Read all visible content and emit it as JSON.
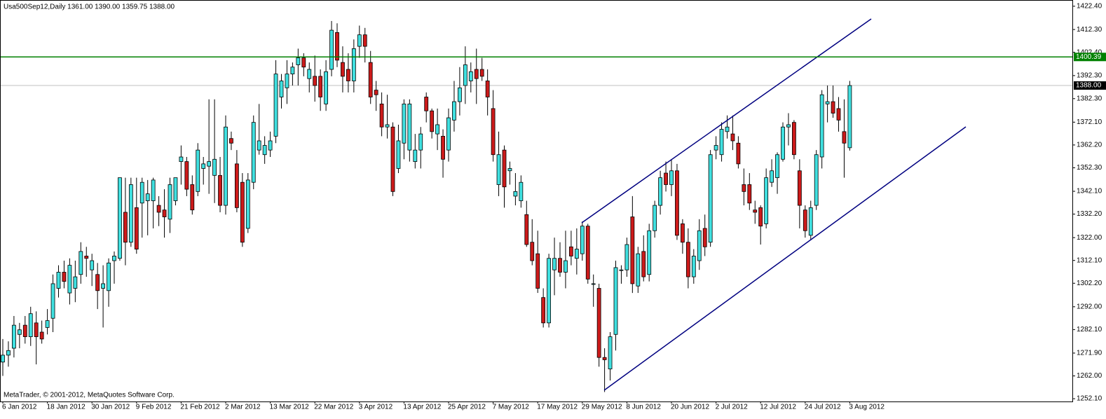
{
  "chart_data": {
    "type": "candlestick",
    "title": "Usa500Sep12,Daily  1361.00 1390.00 1359.75 1388.00",
    "copyright": "MetaTrader, © 2001-2012, MetaQuotes Software Corp.",
    "up_color": "#40e0e0",
    "down_color": "#cc1a1a",
    "categories": [
      "6 Jan 2012",
      null,
      null,
      null,
      null,
      null,
      null,
      null,
      "18 Jan 2012",
      null,
      null,
      null,
      null,
      null,
      null,
      null,
      "30 Jan 2012",
      null,
      null,
      null,
      null,
      null,
      null,
      null,
      "9 Feb 2012",
      null,
      null,
      null,
      null,
      null,
      null,
      null,
      "21 Feb 2012",
      null,
      null,
      null,
      null,
      null,
      null,
      null,
      "2 Mar 2012",
      null,
      null,
      null,
      null,
      null,
      null,
      null,
      "13 Mar 2012",
      null,
      null,
      null,
      null,
      null,
      null,
      null,
      "22 Mar 2012",
      null,
      null,
      null,
      null,
      null,
      null,
      null,
      "3 Apr 2012",
      null,
      null,
      null,
      null,
      null,
      null,
      null,
      "13 Apr 2012",
      null,
      null,
      null,
      null,
      null,
      null,
      null,
      "25 Apr 2012",
      null,
      null,
      null,
      null,
      null,
      null,
      null,
      "7 May 2012",
      null,
      null,
      null,
      null,
      null,
      null,
      null,
      "17 May 2012",
      null,
      null,
      null,
      null,
      null,
      null,
      null,
      "29 May 2012",
      null,
      null,
      null,
      null,
      null,
      null,
      null,
      "8 Jun 2012",
      null,
      null,
      null,
      null,
      null,
      null,
      null,
      "20 Jun 2012",
      null,
      null,
      null,
      null,
      null,
      null,
      null,
      "2 Jul 2012",
      null,
      null,
      null,
      null,
      null,
      null,
      null,
      "12 Jul 2012",
      null,
      null,
      null,
      null,
      null,
      null,
      null,
      "24 Jul 2012",
      null,
      null,
      null,
      null,
      null,
      null,
      null,
      "3 Aug 2012"
    ],
    "open": [
      1268,
      1271,
      1274,
      1280,
      1284,
      1279,
      1285,
      1281,
      1283,
      1287,
      1300,
      1307,
      1298,
      1300,
      1306,
      1314,
      1308,
      1306,
      1300,
      1299,
      1312,
      1313,
      1333,
      1320,
      1335,
      1337,
      1338,
      1338,
      1336,
      1334,
      1330,
      1338,
      1355,
      1355,
      1345,
      1342,
      1352,
      1353,
      1349,
      1349,
      1336,
      1365,
      1354,
      1346,
      1326,
      1346,
      1360,
      1358,
      1360,
      1366,
      1383,
      1387,
      1393,
      1397,
      1400,
      1391,
      1392,
      1392,
      1380,
      1395,
      1411,
      1398,
      1395,
      1390,
      1405,
      1410,
      1398,
      1386,
      1380,
      1370,
      1370,
      1352,
      1363,
      1360,
      1355,
      1360,
      1383,
      1377,
      1367,
      1366,
      1360,
      1373,
      1381,
      1388,
      1390,
      1395,
      1395,
      1390,
      1378,
      1345,
      1360,
      1351,
      1340,
      1338,
      1332,
      1320,
      1315,
      1296,
      1285,
      1308,
      1313,
      1307,
      1318,
      1313,
      1315,
      1327,
      1302,
      1300,
      1270,
      1265,
      1280,
      1308,
      1308,
      1331,
      1301,
      1316,
      1306,
      1325,
      1336,
      1350,
      1345,
      1351,
      1328,
      1320,
      1305,
      1312,
      1326,
      1320,
      1360,
      1358,
      1368,
      1367,
      1363,
      1345,
      1345,
      1334,
      1335,
      1328,
      1346,
      1348,
      1356,
      1370,
      1372,
      1351,
      1334,
      1323,
      1336,
      1357,
      1380,
      1381,
      1378,
      1368,
      1361
    ],
    "high": [
      1278,
      1277,
      1288,
      1285,
      1288,
      1292,
      1290,
      1286,
      1291,
      1306,
      1310,
      1312,
      1313,
      1312,
      1320,
      1318,
      1315,
      1311,
      1310,
      1313,
      1316,
      1348,
      1348,
      1348,
      1348,
      1348,
      1347,
      1348,
      1340,
      1343,
      1348,
      1348,
      1362,
      1357,
      1349,
      1363,
      1357,
      1382,
      1382,
      1357,
      1375,
      1368,
      1360,
      1350,
      1350,
      1375,
      1380,
      1366,
      1368,
      1399,
      1393,
      1399,
      1398,
      1404,
      1402,
      1398,
      1401,
      1395,
      1399,
      1416,
      1415,
      1405,
      1402,
      1408,
      1414,
      1413,
      1403,
      1390,
      1385,
      1384,
      1372,
      1371,
      1382,
      1382,
      1367,
      1370,
      1385,
      1378,
      1378,
      1369,
      1378,
      1390,
      1396,
      1405,
      1398,
      1404,
      1400,
      1395,
      1386,
      1368,
      1362,
      1355,
      1350,
      1349,
      1338,
      1330,
      1325,
      1300,
      1315,
      1322,
      1320,
      1325,
      1325,
      1326,
      1329,
      1328,
      1306,
      1302,
      1274,
      1281,
      1312,
      1310,
      1322,
      1340,
      1318,
      1323,
      1328,
      1338,
      1351,
      1355,
      1356,
      1354,
      1330,
      1326,
      1317,
      1330,
      1332,
      1360,
      1366,
      1372,
      1375,
      1375,
      1366,
      1352,
      1350,
      1338,
      1336,
      1352,
      1356,
      1359,
      1372,
      1376,
      1373,
      1356,
      1336,
      1338,
      1360,
      1386,
      1388,
      1388,
      1383,
      1382,
      1390
    ],
    "low": [
      1262,
      1266,
      1270,
      1274,
      1276,
      1275,
      1267,
      1276,
      1280,
      1281,
      1296,
      1300,
      1293,
      1294,
      1302,
      1305,
      1301,
      1291,
      1283,
      1292,
      1302,
      1312,
      1310,
      1318,
      1315,
      1322,
      1323,
      1326,
      1327,
      1322,
      1324,
      1336,
      1345,
      1340,
      1332,
      1340,
      1345,
      1341,
      1337,
      1333,
      1332,
      1360,
      1333,
      1318,
      1324,
      1343,
      1358,
      1354,
      1357,
      1363,
      1378,
      1380,
      1388,
      1388,
      1392,
      1385,
      1381,
      1377,
      1377,
      1392,
      1396,
      1385,
      1385,
      1385,
      1400,
      1398,
      1380,
      1377,
      1366,
      1365,
      1340,
      1350,
      1356,
      1355,
      1352,
      1352,
      1372,
      1365,
      1360,
      1348,
      1355,
      1368,
      1375,
      1380,
      1385,
      1380,
      1390,
      1375,
      1355,
      1340,
      1335,
      1345,
      1336,
      1335,
      1318,
      1310,
      1298,
      1283,
      1283,
      1297,
      1305,
      1300,
      1310,
      1306,
      1312,
      1302,
      1292,
      1266,
      1255,
      1260,
      1273,
      1302,
      1305,
      1298,
      1298,
      1303,
      1303,
      1322,
      1332,
      1342,
      1340,
      1321,
      1315,
      1300,
      1302,
      1308,
      1314,
      1318,
      1356,
      1355,
      1365,
      1360,
      1352,
      1336,
      1334,
      1328,
      1319,
      1326,
      1344,
      1341,
      1355,
      1362,
      1356,
      1326,
      1322,
      1321,
      1334,
      1352,
      1372,
      1374,
      1368,
      1348,
      1359.75
    ],
    "close": [
      1271,
      1273,
      1284,
      1282,
      1279,
      1289,
      1279,
      1278,
      1286,
      1302,
      1307,
      1303,
      1310,
      1305,
      1316,
      1313,
      1312,
      1299,
      1302,
      1311,
      1314,
      1348,
      1320,
      1345,
      1317,
      1346,
      1341,
      1347,
      1333,
      1331,
      1345,
      1348,
      1357,
      1343,
      1334,
      1360,
      1354,
      1355,
      1356,
      1336,
      1370,
      1363,
      1335,
      1320,
      1347,
      1372,
      1364,
      1362,
      1364,
      1393,
      1390,
      1393,
      1396,
      1400,
      1396,
      1395,
      1388,
      1383,
      1394,
      1412,
      1399,
      1392,
      1390,
      1404,
      1410,
      1405,
      1383,
      1384,
      1370,
      1371,
      1342,
      1364,
      1380,
      1380,
      1360,
      1367,
      1377,
      1368,
      1371,
      1356,
      1374,
      1381,
      1387,
      1397,
      1394,
      1391,
      1392,
      1383,
      1358,
      1358,
      1344,
      1352,
      1342,
      1346,
      1319,
      1312,
      1300,
      1285,
      1313,
      1313,
      1307,
      1312,
      1314,
      1317,
      1327,
      1304,
      1302,
      1270,
      1269,
      1279,
      1309,
      1308,
      1319,
      1302,
      1315,
      1305,
      1325,
      1336,
      1348,
      1345,
      1351,
      1323,
      1320,
      1305,
      1314,
      1325,
      1318,
      1358,
      1362,
      1369,
      1370,
      1364,
      1354,
      1342,
      1337,
      1333,
      1327,
      1348,
      1351,
      1358,
      1370,
      1371,
      1358,
      1336,
      1325,
      1335,
      1358,
      1384,
      1381,
      1376,
      1373,
      1363,
      1388
    ],
    "ylim": [
      1250.9,
      1424.8
    ],
    "yticks": [
      {
        "value": 1422.4,
        "label": "1422.40"
      },
      {
        "value": 1412.3,
        "label": "1412.30"
      },
      {
        "value": 1402.4,
        "label": "1402.40"
      },
      {
        "value": 1392.3,
        "label": "1392.30"
      },
      {
        "value": 1382.3,
        "label": "1382.30"
      },
      {
        "value": 1372.1,
        "label": "1372.10"
      },
      {
        "value": 1362.2,
        "label": "1362.20"
      },
      {
        "value": 1352.3,
        "label": "1352.30"
      },
      {
        "value": 1342.1,
        "label": "1342.10"
      },
      {
        "value": 1332.2,
        "label": "1332.20"
      },
      {
        "value": 1322,
        "label": "1322.00"
      },
      {
        "value": 1312.1,
        "label": "1312.10"
      },
      {
        "value": 1302.2,
        "label": "1302.20"
      },
      {
        "value": 1292,
        "label": "1292.00"
      },
      {
        "value": 1282.1,
        "label": "1282.10"
      },
      {
        "value": 1271.9,
        "label": "1271.90"
      },
      {
        "value": 1262,
        "label": "1262.00"
      },
      {
        "value": 1252.1,
        "label": "1252.10"
      }
    ],
    "hline": {
      "value": 1400.39,
      "color": "#008000"
    },
    "bid_line": {
      "value": 1388,
      "label": "1388.00",
      "color": "#c0c0c0"
    }
  }
}
